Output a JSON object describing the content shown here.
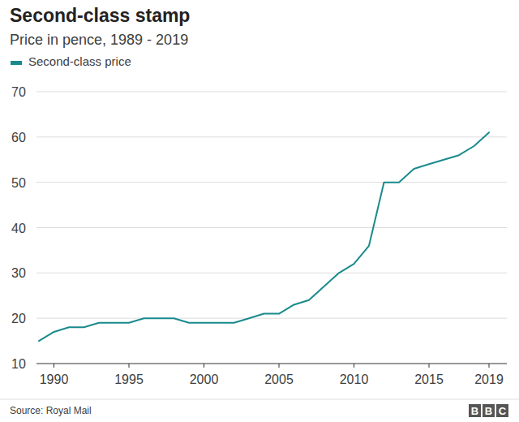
{
  "chart_data": {
    "type": "line",
    "title": "Second-class stamp",
    "subtitle": "Price in pence, 1989 - 2019",
    "source": "Source: Royal Mail",
    "logo": "BBC",
    "x": [
      1989,
      1990,
      1991,
      1992,
      1993,
      1994,
      1995,
      1996,
      1997,
      1998,
      1999,
      2000,
      2001,
      2002,
      2003,
      2004,
      2005,
      2006,
      2007,
      2008,
      2009,
      2010,
      2011,
      2012,
      2013,
      2014,
      2015,
      2016,
      2017,
      2018,
      2019
    ],
    "series": [
      {
        "name": "Second-class price",
        "color": "#1a8a8d",
        "values": [
          15,
          17,
          18,
          18,
          19,
          19,
          19,
          20,
          20,
          20,
          19,
          19,
          19,
          19,
          20,
          21,
          21,
          23,
          24,
          27,
          30,
          32,
          36,
          50,
          50,
          53,
          54,
          55,
          56,
          58,
          61
        ]
      }
    ],
    "xlim": [
      1989,
      2019
    ],
    "xticks": [
      1990,
      1995,
      2000,
      2005,
      2010,
      2015,
      2019
    ],
    "ylim": [
      10,
      70
    ],
    "yticks": [
      10,
      20,
      30,
      40,
      50,
      60,
      70
    ],
    "grid": true,
    "legend": "top-left"
  }
}
